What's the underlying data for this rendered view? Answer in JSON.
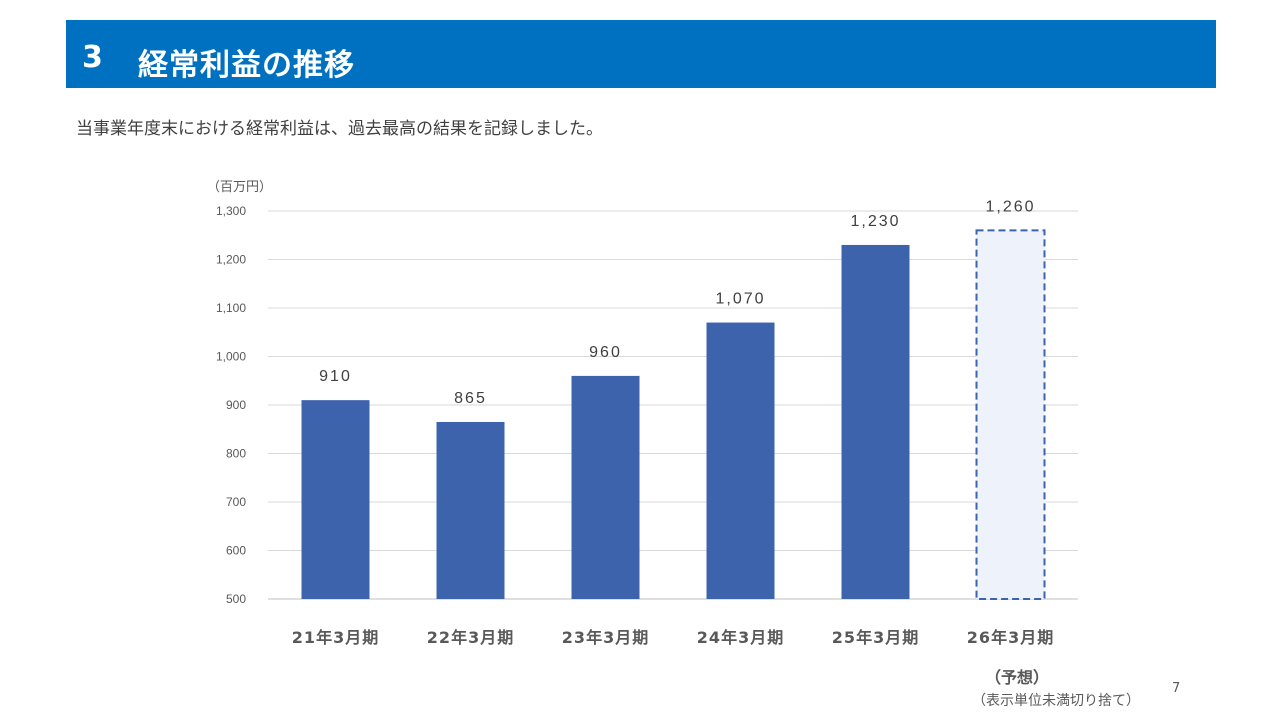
{
  "header": {
    "number": "3",
    "title": "経常利益の推移"
  },
  "subtitle": "当事業年度末における経常利益は、過去最高の結果を記録しました。",
  "footnote": {
    "forecast_label": "（予想）",
    "note": "（表示単位未満切り捨て）"
  },
  "page_number": "7",
  "colors": {
    "header_bg": "#0070c0",
    "bar": "#3d63ad",
    "forecast_fill": "#eef2fa",
    "forecast_border": "#3d63ad",
    "grid": "#d9d9d9"
  },
  "chart_data": {
    "type": "bar",
    "unit_label": "（百万円）",
    "categories": [
      "21年3月期",
      "22年3月期",
      "23年3月期",
      "24年3月期",
      "25年3月期",
      "26年3月期"
    ],
    "values": [
      910,
      865,
      960,
      1070,
      1230,
      1260
    ],
    "value_labels": [
      "910",
      "865",
      "960",
      "1,070",
      "1,230",
      "1,260"
    ],
    "forecast_index": 5,
    "ylim": [
      500,
      1300
    ],
    "yticks": [
      500,
      600,
      700,
      800,
      900,
      1000,
      1100,
      1200,
      1300
    ],
    "ytick_labels": [
      "500",
      "600",
      "700",
      "800",
      "900",
      "1,000",
      "1,100",
      "1,200",
      "1,300"
    ],
    "grid": true,
    "legend": "none"
  }
}
